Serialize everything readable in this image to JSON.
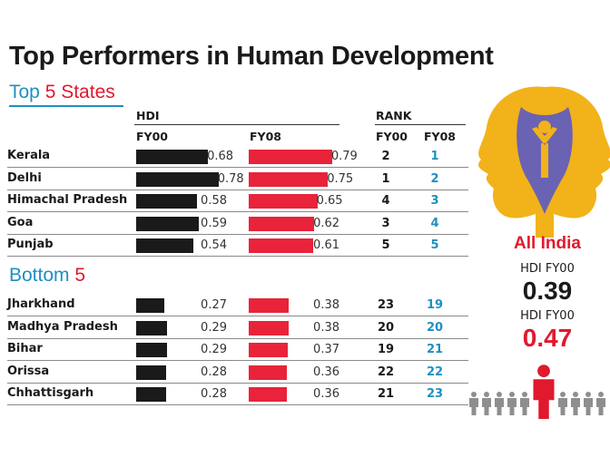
{
  "title": "Top Performers in Human Development",
  "top_section": {
    "word1": "Top",
    "word2": "5 States"
  },
  "bottom_section": {
    "word1": "Bottom",
    "word2": "5"
  },
  "headers": {
    "hdi": "HDI",
    "fy00": "FY00",
    "fy08": "FY08",
    "rank": "RANK",
    "rank_fy00": "FY00",
    "rank_fy08": "FY08"
  },
  "all_india": {
    "label": "All India",
    "hdi_label_1": "HDI FY00",
    "value_1": "0.39",
    "hdi_label_2": "HDI FY00",
    "value_2": "0.47"
  },
  "colors": {
    "fy00_bar": "#1a1a1a",
    "fy08_bar": "#e8233a",
    "accent_blue": "#1f8fc2",
    "accent_red": "#e0192e",
    "logo_gold": "#f2b21a",
    "logo_blue": "#6a63b3"
  },
  "chart_data": {
    "type": "bar",
    "title": "Top Performers in Human Development",
    "xlim": [
      0,
      0.8
    ],
    "series": [
      {
        "name": "FY00",
        "values": [
          0.68,
          0.78,
          0.58,
          0.59,
          0.54,
          0.27,
          0.29,
          0.29,
          0.28,
          0.28
        ]
      },
      {
        "name": "FY08",
        "values": [
          0.79,
          0.75,
          0.65,
          0.62,
          0.61,
          0.38,
          0.38,
          0.37,
          0.36,
          0.36
        ]
      }
    ],
    "top5": [
      {
        "state": "Kerala",
        "fy00": 0.68,
        "fy08": 0.79,
        "fy00_s": "0.68",
        "fy08_s": "0.79",
        "rank_fy00": "2",
        "rank_fy08": "1"
      },
      {
        "state": "Delhi",
        "fy00": 0.78,
        "fy08": 0.75,
        "fy00_s": "0.78",
        "fy08_s": "0.75",
        "rank_fy00": "1",
        "rank_fy08": "2"
      },
      {
        "state": "Himachal Pradesh",
        "fy00": 0.58,
        "fy08": 0.65,
        "fy00_s": "0.58",
        "fy08_s": "0.65",
        "rank_fy00": "4",
        "rank_fy08": "3"
      },
      {
        "state": "Goa",
        "fy00": 0.59,
        "fy08": 0.62,
        "fy00_s": "0.59",
        "fy08_s": "0.62",
        "rank_fy00": "3",
        "rank_fy08": "4"
      },
      {
        "state": "Punjab",
        "fy00": 0.54,
        "fy08": 0.61,
        "fy00_s": "0.54",
        "fy08_s": "0.61",
        "rank_fy00": "5",
        "rank_fy08": "5"
      }
    ],
    "bottom5": [
      {
        "state": "Jharkhand",
        "fy00": 0.27,
        "fy08": 0.38,
        "fy00_s": "0.27",
        "fy08_s": "0.38",
        "rank_fy00": "23",
        "rank_fy08": "19"
      },
      {
        "state": "Madhya Pradesh",
        "fy00": 0.29,
        "fy08": 0.38,
        "fy00_s": "0.29",
        "fy08_s": "0.38",
        "rank_fy00": "20",
        "rank_fy08": "20"
      },
      {
        "state": "Bihar",
        "fy00": 0.29,
        "fy08": 0.37,
        "fy00_s": "0.29",
        "fy08_s": "0.37",
        "rank_fy00": "19",
        "rank_fy08": "21"
      },
      {
        "state": "Orissa",
        "fy00": 0.28,
        "fy08": 0.36,
        "fy00_s": "0.28",
        "fy08_s": "0.36",
        "rank_fy00": "22",
        "rank_fy08": "22"
      },
      {
        "state": "Chhattisgarh",
        "fy00": 0.28,
        "fy08": 0.36,
        "fy00_s": "0.28",
        "fy08_s": "0.36",
        "rank_fy00": "21",
        "rank_fy08": "23"
      }
    ]
  }
}
